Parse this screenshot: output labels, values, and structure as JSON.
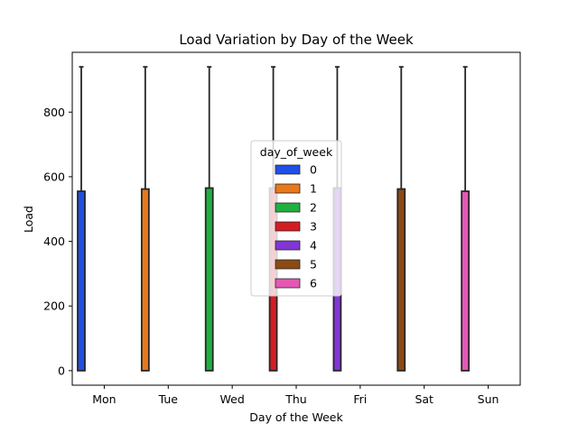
{
  "chart_data": {
    "type": "box",
    "title": "Load Variation by Day of the Week",
    "xlabel": "Day of the Week",
    "ylabel": "Load",
    "categories": [
      "Mon",
      "Tue",
      "Wed",
      "Thu",
      "Fri",
      "Sat",
      "Sun"
    ],
    "ylim": [
      -45,
      985
    ],
    "yticks": [
      0,
      200,
      400,
      600,
      800
    ],
    "legend": {
      "title": "day_of_week",
      "placement": "center",
      "entries": [
        "0",
        "1",
        "2",
        "3",
        "4",
        "5",
        "6"
      ]
    },
    "series": [
      {
        "name": "0",
        "category": "Mon",
        "q1": 0,
        "q3": 555,
        "whisker_low": 0,
        "whisker_high": 940,
        "color": "#1f4fe6"
      },
      {
        "name": "1",
        "category": "Tue",
        "q1": 0,
        "q3": 562,
        "whisker_low": 0,
        "whisker_high": 940,
        "color": "#e8781a"
      },
      {
        "name": "2",
        "category": "Wed",
        "q1": 0,
        "q3": 565,
        "whisker_low": 0,
        "whisker_high": 940,
        "color": "#1fb041"
      },
      {
        "name": "3",
        "category": "Thu",
        "q1": 0,
        "q3": 565,
        "whisker_low": 0,
        "whisker_high": 940,
        "color": "#d31d23"
      },
      {
        "name": "4",
        "category": "Fri",
        "q1": 0,
        "q3": 565,
        "whisker_low": 0,
        "whisker_high": 940,
        "color": "#8236d4"
      },
      {
        "name": "5",
        "category": "Sat",
        "q1": 0,
        "q3": 562,
        "whisker_low": 0,
        "whisker_high": 940,
        "color": "#8b4a13"
      },
      {
        "name": "6",
        "category": "Sun",
        "q1": 0,
        "q3": 555,
        "whisker_low": 0,
        "whisker_high": 940,
        "color": "#e458b4"
      }
    ],
    "grid": false
  }
}
